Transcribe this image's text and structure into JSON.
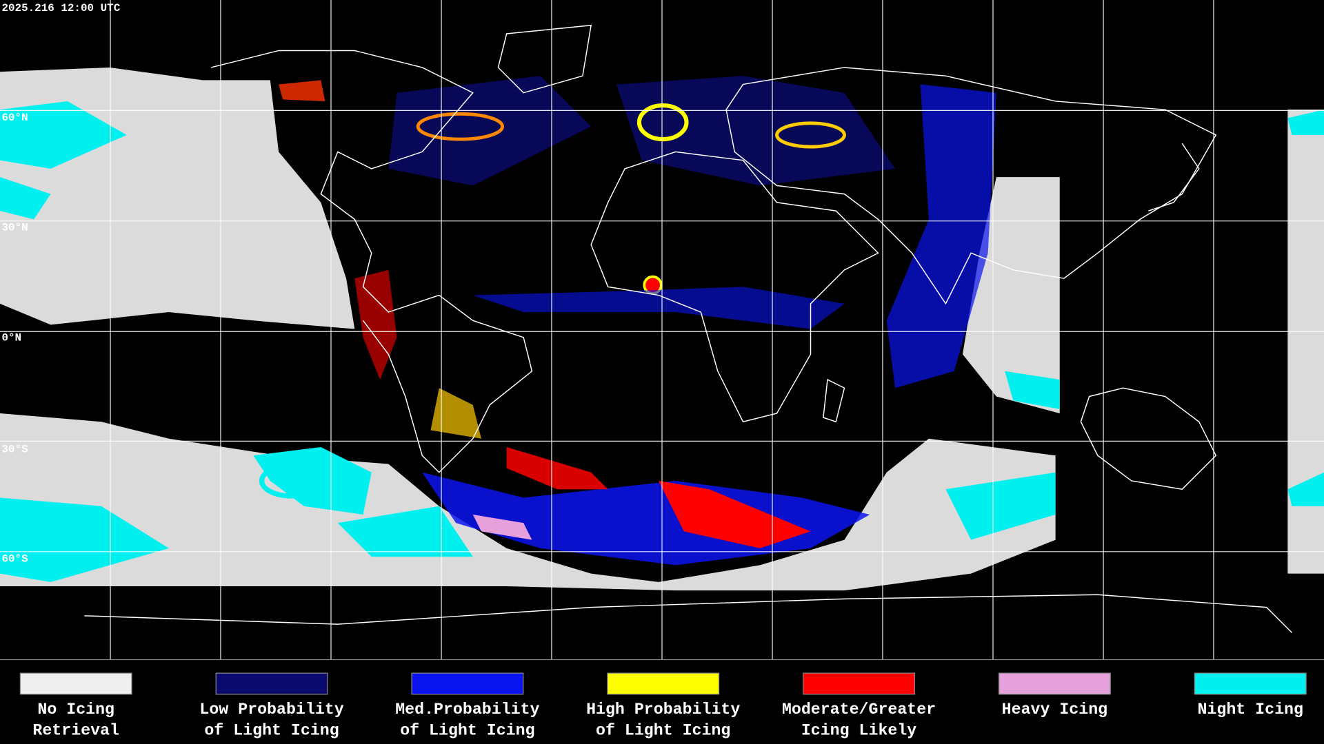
{
  "header": {
    "timestamp": "2025.216 12:00 UTC"
  },
  "latitude_labels": [
    "60°N",
    "30°N",
    "0°N",
    "30°S",
    "60°S"
  ],
  "legend": [
    {
      "lines": [
        "No Icing",
        "Retrieval"
      ],
      "color": "#eeeeee"
    },
    {
      "lines": [
        "Low Probability",
        "of Light Icing"
      ],
      "color": "#0a0a6e"
    },
    {
      "lines": [
        "Med.Probability",
        "of Light Icing"
      ],
      "color": "#0a14f0"
    },
    {
      "lines": [
        "High Probability",
        "of Light Icing"
      ],
      "color": "#ffff00"
    },
    {
      "lines": [
        "Moderate/Greater",
        "Icing Likely"
      ],
      "color": "#ff0000"
    },
    {
      "lines": [
        "Heavy Icing"
      ],
      "color": "#e6a0dc"
    },
    {
      "lines": [
        "Night Icing"
      ],
      "color": "#00f0f0"
    }
  ]
}
